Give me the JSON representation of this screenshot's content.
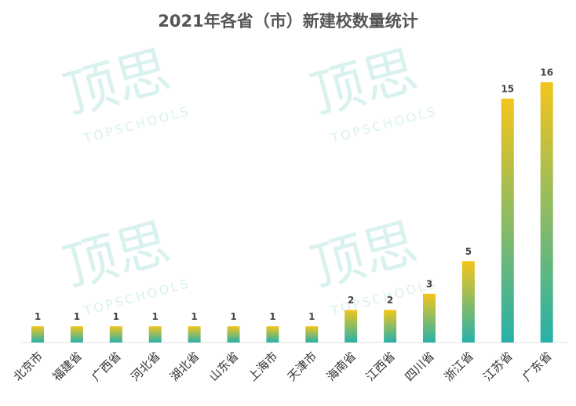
{
  "chart_data": {
    "type": "bar",
    "title": "2021年各省（市）新建校数量统计",
    "categories": [
      "北京市",
      "福建省",
      "广西省",
      "河北省",
      "湖北省",
      "山东省",
      "上海市",
      "天津市",
      "海南省",
      "江西省",
      "四川省",
      "浙江省",
      "江苏省",
      "广东省"
    ],
    "values": [
      1,
      1,
      1,
      1,
      1,
      1,
      1,
      1,
      2,
      2,
      3,
      5,
      15,
      16
    ],
    "colors": [
      "#27b1aa",
      "#f3c51b"
    ],
    "watermark": "顶思",
    "watermark_sub": "TOPSCHOOLS"
  }
}
